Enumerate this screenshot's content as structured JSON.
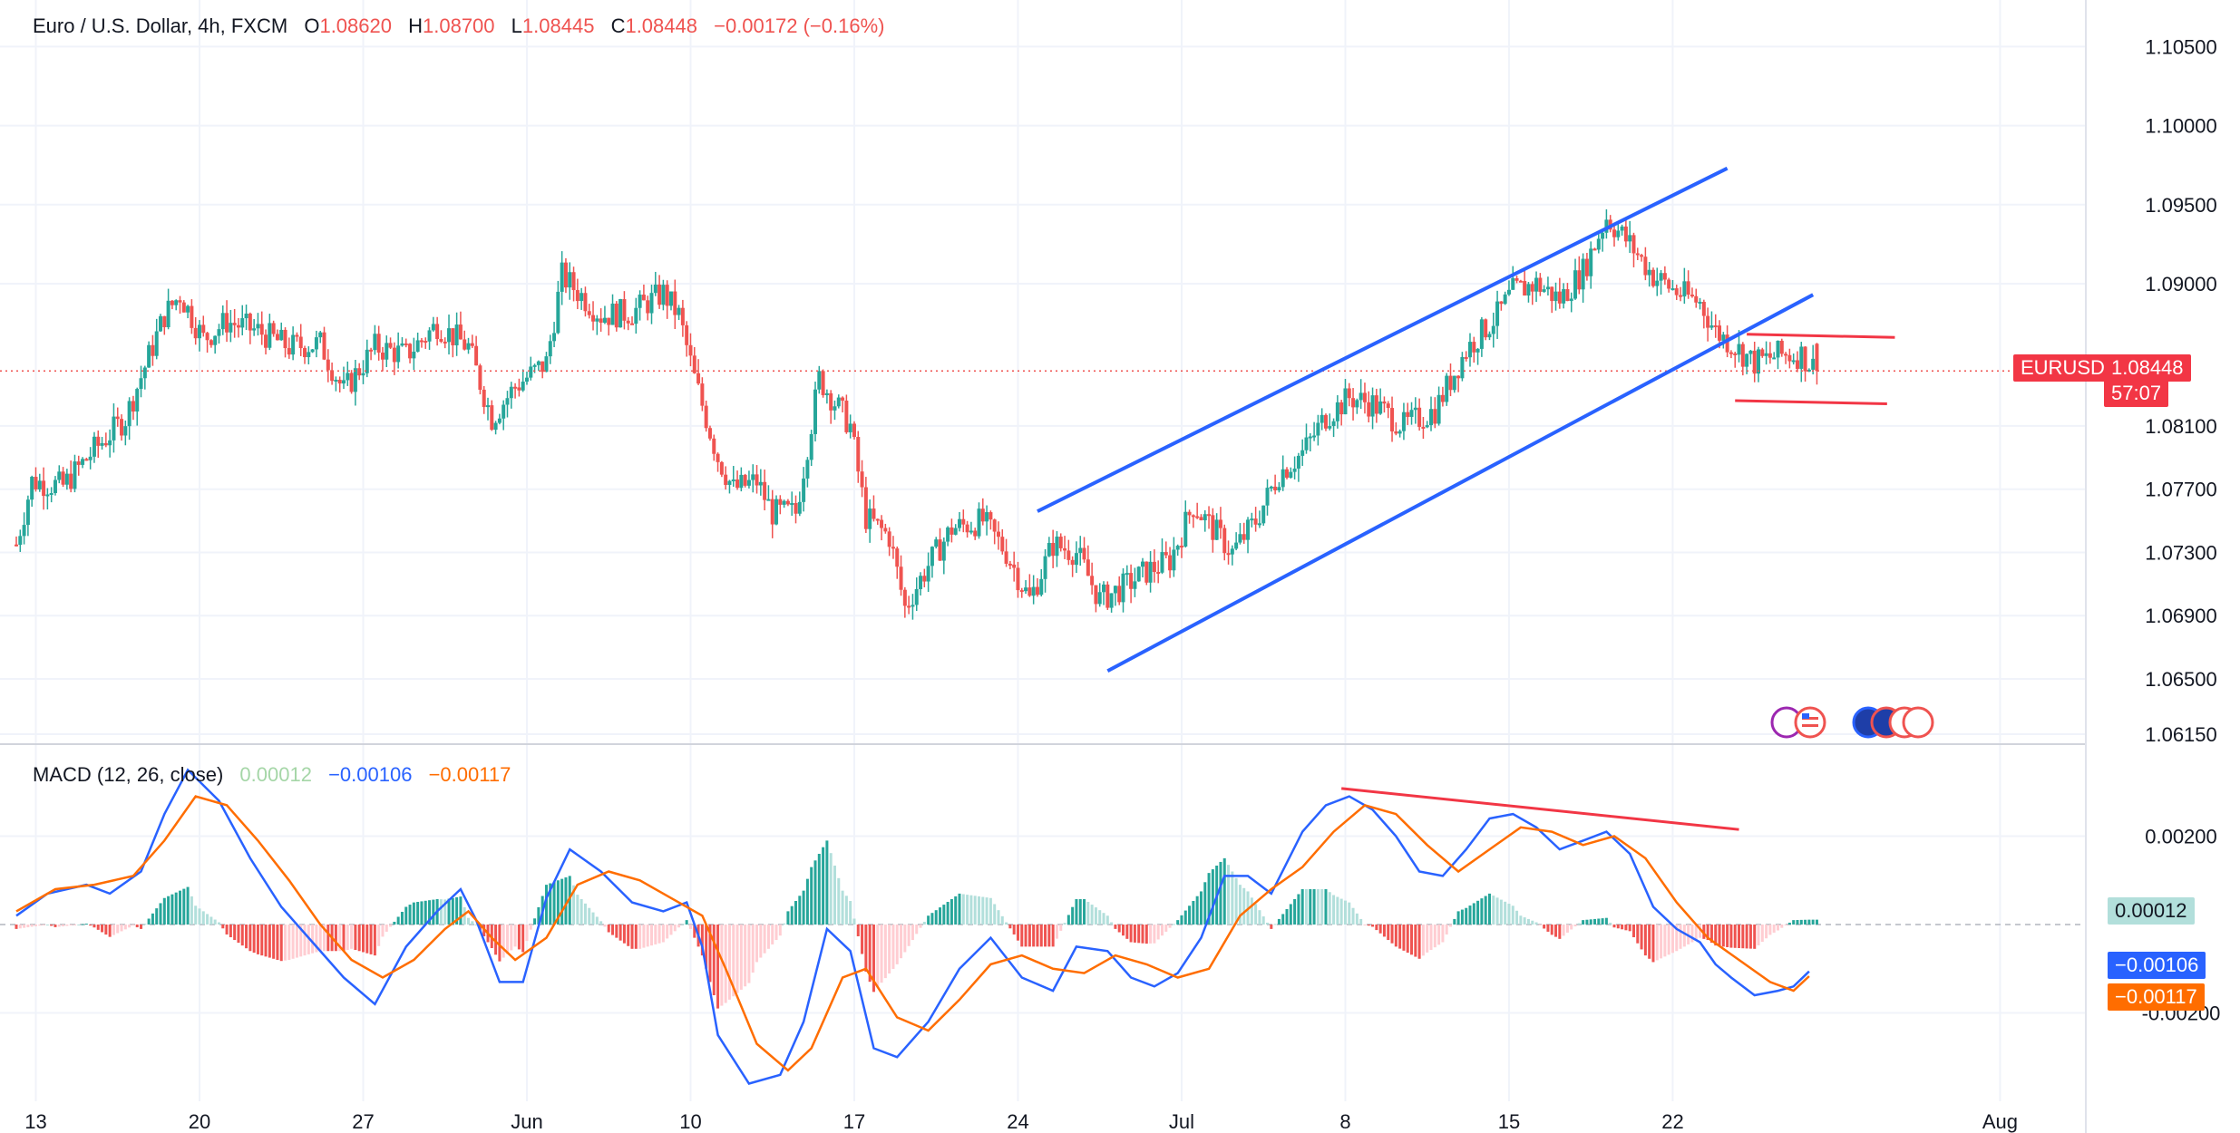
{
  "header": {
    "symbol": "Euro / U.S. Dollar, 4h, FXCM",
    "open_label": "O",
    "open": "1.08620",
    "high_label": "H",
    "high": "1.08700",
    "low_label": "L",
    "low": "1.08445",
    "close_label": "C",
    "close": "1.08448",
    "change": "−0.00172 (−0.16%)"
  },
  "price_badge": {
    "ticker": "EURUSD",
    "price": "1.08448",
    "countdown": "57:07"
  },
  "macd_legend": {
    "title": "MACD (12, 26, close)",
    "hist": "0.00012",
    "macd": "−0.00106",
    "signal": "−0.00117"
  },
  "macd_badges": {
    "hist": "0.00012",
    "macd": "−0.00106",
    "signal": "−0.00117"
  },
  "colors": {
    "up": "#26a69a",
    "down": "#ef5350",
    "macd": "#2962ff",
    "signal": "#ff6d00",
    "trend": "#2962ff",
    "annot": "#f23645",
    "hist_up": "#26a69a",
    "hist_down": "#ef5350"
  },
  "chart_data": {
    "type": "candlestick",
    "price_axis": {
      "ticks": [
        "1.10500",
        "1.10000",
        "1.09500",
        "1.09000",
        "1.08100",
        "1.07700",
        "1.07300",
        "1.06900",
        "1.06500",
        "1.06150"
      ],
      "tick_values": [
        1.105,
        1.1,
        1.095,
        1.09,
        1.081,
        1.077,
        1.073,
        1.069,
        1.065,
        1.0615
      ],
      "ylim": [
        1.0615,
        1.1068
      ]
    },
    "x_axis": {
      "labels": [
        "13",
        "20",
        "27",
        "Jun",
        "10",
        "17",
        "24",
        "Jul",
        "8",
        "15",
        "22",
        "Aug"
      ],
      "label_bars": [
        5,
        47,
        89,
        131,
        173,
        215,
        257,
        299,
        341,
        383,
        425,
        509
      ],
      "xlim": [
        0,
        531
      ]
    },
    "price_path": [
      [
        0,
        1.0735
      ],
      [
        4,
        1.0775
      ],
      [
        12,
        1.0772
      ],
      [
        20,
        1.0795
      ],
      [
        28,
        1.0815
      ],
      [
        38,
        1.088
      ],
      [
        42,
        1.0893
      ],
      [
        48,
        1.0865
      ],
      [
        54,
        1.0876
      ],
      [
        62,
        1.087
      ],
      [
        70,
        1.086
      ],
      [
        78,
        1.0862
      ],
      [
        84,
        1.0832
      ],
      [
        92,
        1.086
      ],
      [
        100,
        1.0855
      ],
      [
        108,
        1.0874
      ],
      [
        116,
        1.086
      ],
      [
        122,
        1.0815
      ],
      [
        128,
        1.0835
      ],
      [
        136,
        1.085
      ],
      [
        140,
        1.0905
      ],
      [
        150,
        1.088
      ],
      [
        158,
        1.0882
      ],
      [
        166,
        1.0894
      ],
      [
        170,
        1.088
      ],
      [
        174,
        1.084
      ],
      [
        180,
        1.079
      ],
      [
        184,
        1.077
      ],
      [
        190,
        1.0775
      ],
      [
        194,
        1.0755
      ],
      [
        200,
        1.0755
      ],
      [
        206,
        1.084
      ],
      [
        214,
        1.081
      ],
      [
        218,
        1.0752
      ],
      [
        224,
        1.074
      ],
      [
        228,
        1.0695
      ],
      [
        234,
        1.0722
      ],
      [
        240,
        1.0745
      ],
      [
        248,
        1.075
      ],
      [
        254,
        1.073
      ],
      [
        260,
        1.07
      ],
      [
        266,
        1.0735
      ],
      [
        272,
        1.073
      ],
      [
        278,
        1.07
      ],
      [
        284,
        1.0708
      ],
      [
        290,
        1.0718
      ],
      [
        296,
        1.0725
      ],
      [
        302,
        1.076
      ],
      [
        312,
        1.073
      ],
      [
        318,
        1.075
      ],
      [
        324,
        1.078
      ],
      [
        330,
        1.0793
      ],
      [
        336,
        1.0816
      ],
      [
        342,
        1.0828
      ],
      [
        348,
        1.0824
      ],
      [
        356,
        1.081
      ],
      [
        364,
        1.082
      ],
      [
        372,
        1.0858
      ],
      [
        380,
        1.088
      ],
      [
        384,
        1.0895
      ],
      [
        390,
        1.09
      ],
      [
        396,
        1.089
      ],
      [
        402,
        1.0908
      ],
      [
        408,
        1.0942
      ],
      [
        414,
        1.0925
      ],
      [
        420,
        1.0905
      ],
      [
        426,
        1.0895
      ],
      [
        432,
        1.0888
      ],
      [
        436,
        1.087
      ],
      [
        440,
        1.0862
      ],
      [
        446,
        1.085
      ],
      [
        452,
        1.0855
      ],
      [
        458,
        1.0855
      ],
      [
        462,
        1.0845
      ]
    ],
    "trend_lines": [
      {
        "name": "channel-upper",
        "from": [
          262,
          1.0756
        ],
        "to": [
          439,
          1.0973
        ]
      },
      {
        "name": "channel-lower",
        "from": [
          280,
          1.0655
        ],
        "to": [
          461,
          1.0893
        ]
      }
    ],
    "annotation_lines": [
      {
        "name": "range-top",
        "from": [
          444,
          1.0868
        ],
        "to": [
          482,
          1.0866
        ]
      },
      {
        "name": "range-bottom",
        "from": [
          441,
          1.0826
        ],
        "to": [
          480,
          1.0824
        ]
      },
      {
        "name": "macd-divergence",
        "from": [
          340,
          0.00308
        ],
        "to": [
          442,
          0.00215
        ]
      }
    ],
    "last_price": 1.08448,
    "macd": {
      "params": "12, 26, close",
      "ylim": [
        -0.004,
        0.004
      ],
      "ticks": [
        "0.00200",
        "-0.00200"
      ],
      "tick_values": [
        0.002,
        -0.002
      ],
      "macd_path": [
        [
          0,
          0.0002
        ],
        [
          8,
          0.0007
        ],
        [
          18,
          0.0009
        ],
        [
          24,
          0.0007
        ],
        [
          32,
          0.0012
        ],
        [
          38,
          0.0025
        ],
        [
          44,
          0.0035
        ],
        [
          52,
          0.0028
        ],
        [
          60,
          0.0015
        ],
        [
          68,
          0.0004
        ],
        [
          76,
          -0.0004
        ],
        [
          84,
          -0.0012
        ],
        [
          92,
          -0.0018
        ],
        [
          100,
          -0.0005
        ],
        [
          108,
          0.0003
        ],
        [
          114,
          0.0008
        ],
        [
          118,
          0.0001
        ],
        [
          124,
          -0.0013
        ],
        [
          130,
          -0.0013
        ],
        [
          136,
          0.0006
        ],
        [
          142,
          0.0017
        ],
        [
          150,
          0.0012
        ],
        [
          158,
          0.0005
        ],
        [
          166,
          0.0003
        ],
        [
          172,
          0.0005
        ],
        [
          176,
          -0.0005
        ],
        [
          180,
          -0.0025
        ],
        [
          188,
          -0.0036
        ],
        [
          196,
          -0.0034
        ],
        [
          202,
          -0.0022
        ],
        [
          208,
          -0.0001
        ],
        [
          214,
          -0.0006
        ],
        [
          220,
          -0.0028
        ],
        [
          226,
          -0.003
        ],
        [
          234,
          -0.0022
        ],
        [
          242,
          -0.001
        ],
        [
          250,
          -0.0003
        ],
        [
          258,
          -0.0012
        ],
        [
          266,
          -0.0015
        ],
        [
          272,
          -0.0005
        ],
        [
          280,
          -0.0006
        ],
        [
          286,
          -0.0012
        ],
        [
          292,
          -0.0014
        ],
        [
          298,
          -0.0011
        ],
        [
          304,
          -0.0003
        ],
        [
          310,
          0.0011
        ],
        [
          316,
          0.0011
        ],
        [
          322,
          0.0007
        ],
        [
          330,
          0.0021
        ],
        [
          336,
          0.0027
        ],
        [
          342,
          0.0029
        ],
        [
          348,
          0.0026
        ],
        [
          354,
          0.002
        ],
        [
          360,
          0.0012
        ],
        [
          366,
          0.0011
        ],
        [
          372,
          0.0017
        ],
        [
          378,
          0.0024
        ],
        [
          384,
          0.0025
        ],
        [
          390,
          0.0022
        ],
        [
          396,
          0.0017
        ],
        [
          402,
          0.0019
        ],
        [
          408,
          0.0021
        ],
        [
          414,
          0.0016
        ],
        [
          420,
          0.0004
        ],
        [
          426,
          -0.0001
        ],
        [
          432,
          -0.0004
        ],
        [
          436,
          -0.0009
        ],
        [
          440,
          -0.0012
        ],
        [
          446,
          -0.0016
        ],
        [
          452,
          -0.0015
        ],
        [
          456,
          -0.0014
        ],
        [
          460,
          -0.00106
        ]
      ],
      "signal_path": [
        [
          0,
          0.0003
        ],
        [
          10,
          0.0008
        ],
        [
          20,
          0.0009
        ],
        [
          30,
          0.0011
        ],
        [
          38,
          0.0019
        ],
        [
          46,
          0.0029
        ],
        [
          54,
          0.0027
        ],
        [
          62,
          0.0019
        ],
        [
          70,
          0.001
        ],
        [
          78,
          0.0
        ],
        [
          86,
          -0.0008
        ],
        [
          94,
          -0.0012
        ],
        [
          102,
          -0.0008
        ],
        [
          110,
          -0.0001
        ],
        [
          116,
          0.0003
        ],
        [
          122,
          -0.0003
        ],
        [
          128,
          -0.0008
        ],
        [
          136,
          -0.0003
        ],
        [
          144,
          0.0009
        ],
        [
          152,
          0.0012
        ],
        [
          160,
          0.001
        ],
        [
          168,
          0.0006
        ],
        [
          176,
          0.0002
        ],
        [
          182,
          -0.001
        ],
        [
          190,
          -0.0027
        ],
        [
          198,
          -0.0033
        ],
        [
          204,
          -0.0028
        ],
        [
          212,
          -0.0012
        ],
        [
          218,
          -0.001
        ],
        [
          226,
          -0.0021
        ],
        [
          234,
          -0.0024
        ],
        [
          242,
          -0.0017
        ],
        [
          250,
          -0.0009
        ],
        [
          258,
          -0.0007
        ],
        [
          266,
          -0.001
        ],
        [
          274,
          -0.0011
        ],
        [
          282,
          -0.0007
        ],
        [
          290,
          -0.0009
        ],
        [
          298,
          -0.0012
        ],
        [
          306,
          -0.001
        ],
        [
          314,
          0.0002
        ],
        [
          322,
          0.0008
        ],
        [
          330,
          0.0013
        ],
        [
          338,
          0.0021
        ],
        [
          346,
          0.0027
        ],
        [
          354,
          0.0025
        ],
        [
          362,
          0.0018
        ],
        [
          370,
          0.0012
        ],
        [
          378,
          0.0017
        ],
        [
          386,
          0.0022
        ],
        [
          394,
          0.0021
        ],
        [
          402,
          0.0018
        ],
        [
          410,
          0.002
        ],
        [
          418,
          0.0015
        ],
        [
          426,
          0.0005
        ],
        [
          434,
          -0.0003
        ],
        [
          442,
          -0.0008
        ],
        [
          450,
          -0.0013
        ],
        [
          456,
          -0.0015
        ],
        [
          460,
          -0.00117
        ]
      ]
    }
  }
}
